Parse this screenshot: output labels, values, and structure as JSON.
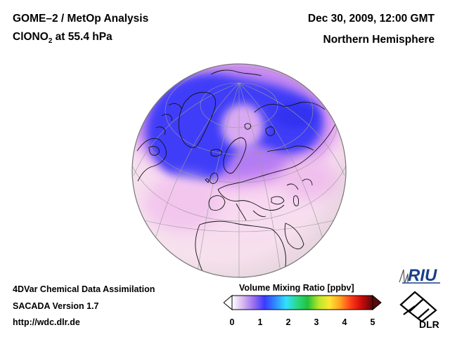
{
  "header": {
    "instrument": "GOME–2 / MetOp Analysis",
    "species_main": "ClONO",
    "species_sub": "2",
    "species_rest": " at 55.4 hPa",
    "datetime": "Dec 30, 2009, 12:00 GMT",
    "region": "Northern Hemisphere"
  },
  "footer": {
    "line1": "4DVar Chemical Data Assimilation",
    "line2": "SACADA Version 1.7",
    "line3": "http://wdc.dlr.de"
  },
  "colorbar": {
    "title": "Volume Mixing Ratio [ppbv]",
    "ticks": [
      "0",
      "1",
      "2",
      "3",
      "4",
      "5"
    ],
    "min": 0,
    "max": 5,
    "colors": [
      "#ffffff",
      "#d8b8f0",
      "#9a6ff0",
      "#3a3aff",
      "#2f8cff",
      "#33e0ff",
      "#2bd88a",
      "#22c23a",
      "#b8e62a",
      "#ffe633",
      "#ffa020",
      "#ff3a1a",
      "#c80a0a",
      "#5a0a0a"
    ]
  },
  "logos": {
    "riu": "RIU",
    "dlr": "DLR"
  }
}
